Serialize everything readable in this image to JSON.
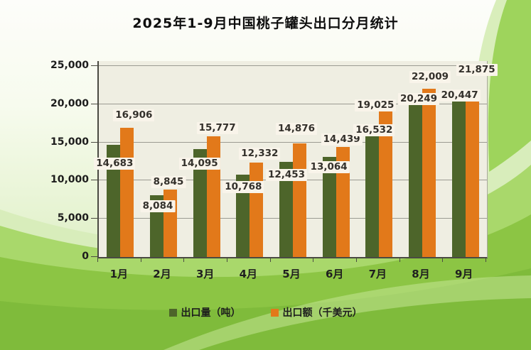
{
  "title": "2025年1-9月中国桃子罐头出口分月统计",
  "chart_data": {
    "type": "bar",
    "title": "2025年1-9月中国桃子罐头出口分月统计",
    "categories": [
      "1月",
      "2月",
      "3月",
      "4月",
      "5月",
      "6月",
      "7月",
      "8月",
      "9月"
    ],
    "series": [
      {
        "name": "出口量（吨）",
        "color": "#4d652a",
        "values": [
          14683,
          8084,
          14095,
          10768,
          12453,
          13064,
          16532,
          20249,
          20447
        ]
      },
      {
        "name": "出口额（千美元）",
        "color": "#e2791a",
        "values": [
          16906,
          8845,
          15777,
          12332,
          14876,
          14439,
          19025,
          22009,
          21875
        ]
      }
    ],
    "xlabel": "",
    "ylabel": "",
    "ylim": [
      0,
      25000
    ],
    "yticks": [
      0,
      5000,
      10000,
      15000,
      20000,
      25000
    ],
    "ytick_labels": [
      "0",
      "5,000",
      "10,000",
      "15,000",
      "20,000",
      "25,000"
    ],
    "grid": true,
    "data_labels": true,
    "legend_position": "bottom"
  },
  "colors": {
    "plot_background": "#efeee2",
    "label_box_background": "#f9f4ea",
    "label_text": "#33302b",
    "gridline": "#9b9b92",
    "axis_line": "#4a4a42",
    "background_wave_light": "#d8edbb",
    "background_wave_mid": "#a9d86b",
    "background_wave_main": "#8cc544",
    "background_wave_dark": "#7db93a",
    "background_swirl": "#9ed45c"
  }
}
